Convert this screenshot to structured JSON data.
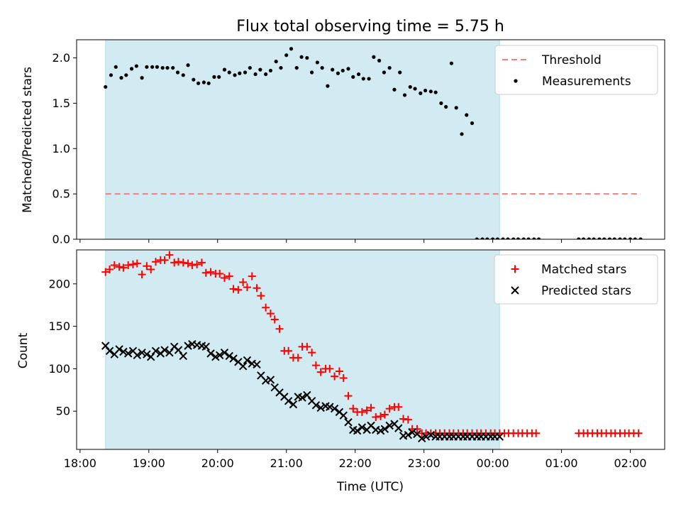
{
  "figure": {
    "title": "Flux total observing time = 5.75 h",
    "xlabel": "Time (UTC)",
    "xticks": [
      "18:00",
      "19:00",
      "20:00",
      "21:00",
      "22:00",
      "23:00",
      "00:00",
      "01:00",
      "02:00"
    ]
  },
  "colors": {
    "shade": "#add8e6",
    "threshold": "#f08080",
    "matched": "#ff0000",
    "predicted": "#000000",
    "measurement": "#000000"
  },
  "chart_data": [
    {
      "type": "scatter",
      "panel": "top",
      "ylabel": "Matched/Predicted stars",
      "xlim": [
        -0.05,
        8.5
      ],
      "ylim": [
        0,
        2.2
      ],
      "yticks": [
        0.0,
        0.5,
        1.0,
        1.5,
        2.0
      ],
      "shaded_span_x": [
        0.37,
        6.1
      ],
      "grid": false,
      "legend_position": "top-right",
      "series": [
        {
          "name": "Threshold",
          "style": "dashed-line",
          "x": [
            0.37,
            8.15
          ],
          "y": [
            0.5,
            0.5
          ]
        },
        {
          "name": "Measurements",
          "style": "dot",
          "x": [
            0.37,
            0.45,
            0.52,
            0.6,
            0.67,
            0.75,
            0.82,
            0.9,
            0.97,
            1.05,
            1.12,
            1.2,
            1.27,
            1.35,
            1.42,
            1.5,
            1.57,
            1.65,
            1.72,
            1.8,
            1.87,
            1.95,
            2.02,
            2.1,
            2.17,
            2.25,
            2.32,
            2.4,
            2.47,
            2.55,
            2.62,
            2.7,
            2.77,
            2.85,
            2.92,
            3.0,
            3.07,
            3.15,
            3.22,
            3.3,
            3.37,
            3.45,
            3.52,
            3.6,
            3.67,
            3.75,
            3.82,
            3.9,
            3.97,
            4.05,
            4.12,
            4.2,
            4.27,
            4.35,
            4.42,
            4.5,
            4.57,
            4.65,
            4.72,
            4.8,
            4.87,
            4.95,
            5.02,
            5.1,
            5.17,
            5.25,
            5.32,
            5.4,
            5.47,
            5.55,
            5.62,
            5.7,
            5.77,
            5.85,
            5.92,
            6.0,
            6.07,
            6.15,
            6.22,
            6.3,
            6.37,
            6.45,
            6.52,
            6.6,
            6.67,
            7.25,
            7.32,
            7.4,
            7.47,
            7.55,
            7.62,
            7.7,
            7.77,
            7.85,
            7.92,
            8.0,
            8.07,
            8.15
          ],
          "y": [
            1.68,
            1.81,
            1.9,
            1.78,
            1.81,
            1.88,
            1.91,
            1.78,
            1.9,
            1.9,
            1.9,
            1.89,
            1.89,
            1.89,
            1.84,
            1.81,
            1.92,
            1.76,
            1.72,
            1.73,
            1.72,
            1.79,
            1.79,
            1.87,
            1.84,
            1.81,
            1.83,
            1.84,
            1.89,
            1.82,
            1.87,
            1.82,
            1.86,
            1.96,
            1.89,
            2.03,
            2.1,
            1.89,
            2.01,
            2.0,
            1.84,
            1.95,
            1.89,
            1.69,
            1.87,
            1.83,
            1.86,
            1.88,
            1.79,
            1.82,
            1.77,
            1.77,
            2.01,
            1.97,
            1.84,
            1.89,
            1.65,
            1.84,
            1.59,
            1.68,
            1.66,
            1.61,
            1.64,
            1.63,
            1.62,
            1.5,
            1.46,
            1.94,
            1.45,
            1.16,
            1.37,
            1.28,
            0.0,
            0.0,
            0.0,
            0.0,
            0.0,
            0.0,
            0.0,
            0.0,
            0.0,
            0.0,
            0.0,
            0.0,
            0.0,
            0.0,
            0.0,
            0.0,
            0.0,
            0.0,
            0.0,
            0.0,
            0.0,
            0.0,
            0.0,
            0.0,
            0.0,
            0.0
          ]
        }
      ]
    },
    {
      "type": "scatter",
      "panel": "bottom",
      "ylabel": "Count",
      "xlim": [
        -0.05,
        8.5
      ],
      "ylim": [
        5,
        240
      ],
      "yticks": [
        50,
        100,
        150,
        200
      ],
      "shaded_span_x": [
        0.37,
        6.1
      ],
      "grid": false,
      "legend_position": "top-right",
      "series": [
        {
          "name": "Matched stars",
          "marker": "plus",
          "x": [
            0.37,
            0.43,
            0.5,
            0.57,
            0.63,
            0.7,
            0.77,
            0.83,
            0.9,
            0.97,
            1.03,
            1.1,
            1.17,
            1.23,
            1.3,
            1.37,
            1.43,
            1.5,
            1.57,
            1.63,
            1.7,
            1.77,
            1.83,
            1.9,
            1.97,
            2.03,
            2.1,
            2.17,
            2.23,
            2.3,
            2.37,
            2.43,
            2.5,
            2.57,
            2.63,
            2.7,
            2.77,
            2.83,
            2.9,
            2.97,
            3.03,
            3.1,
            3.17,
            3.23,
            3.3,
            3.37,
            3.43,
            3.5,
            3.57,
            3.63,
            3.7,
            3.77,
            3.83,
            3.9,
            3.97,
            4.03,
            4.1,
            4.17,
            4.23,
            4.3,
            4.37,
            4.43,
            4.5,
            4.57,
            4.63,
            4.7,
            4.77,
            4.83,
            4.9,
            4.97,
            5.03,
            5.1,
            5.17,
            5.23,
            5.3,
            5.37,
            5.43,
            5.5,
            5.57,
            5.63,
            5.7,
            5.77,
            5.83,
            5.9,
            5.97,
            6.03,
            6.1,
            6.17,
            6.23,
            6.3,
            6.37,
            6.43,
            6.5,
            6.57,
            6.63,
            7.25,
            7.32,
            7.38,
            7.45,
            7.52,
            7.58,
            7.65,
            7.72,
            7.78,
            7.85,
            7.92,
            7.98,
            8.05,
            8.12
          ],
          "y": [
            214,
            217,
            222,
            220,
            219,
            222,
            223,
            224,
            211,
            221,
            217,
            226,
            228,
            228,
            234,
            225,
            226,
            225,
            224,
            222,
            223,
            225,
            213,
            214,
            212,
            212,
            207,
            209,
            194,
            193,
            202,
            196,
            209,
            195,
            186,
            172,
            165,
            158,
            147,
            121,
            121,
            113,
            113,
            126,
            126,
            119,
            104,
            96,
            100,
            100,
            91,
            97,
            89,
            68,
            53,
            49,
            49,
            51,
            54,
            43,
            44,
            46,
            53,
            55,
            55,
            41,
            40,
            29,
            29,
            24,
            24,
            24,
            24,
            24,
            24,
            24,
            24,
            24,
            24,
            24,
            24,
            24,
            24,
            24,
            24,
            24,
            24,
            24,
            24,
            24,
            24,
            24,
            24,
            24,
            24,
            24,
            24,
            24,
            24,
            24,
            24,
            24,
            24,
            24,
            24,
            24,
            24,
            24,
            24
          ],
          "note": ""
        },
        {
          "name": "Predicted stars",
          "marker": "x",
          "x": [
            0.37,
            0.43,
            0.5,
            0.57,
            0.63,
            0.7,
            0.77,
            0.83,
            0.9,
            0.97,
            1.03,
            1.1,
            1.17,
            1.23,
            1.3,
            1.37,
            1.43,
            1.5,
            1.57,
            1.63,
            1.7,
            1.77,
            1.83,
            1.9,
            1.97,
            2.03,
            2.1,
            2.17,
            2.23,
            2.3,
            2.37,
            2.43,
            2.5,
            2.57,
            2.63,
            2.7,
            2.77,
            2.83,
            2.9,
            2.97,
            3.03,
            3.1,
            3.17,
            3.23,
            3.3,
            3.37,
            3.43,
            3.5,
            3.57,
            3.63,
            3.7,
            3.77,
            3.83,
            3.9,
            3.97,
            4.03,
            4.1,
            4.17,
            4.23,
            4.3,
            4.37,
            4.43,
            4.5,
            4.57,
            4.63,
            4.7,
            4.77,
            4.83,
            4.9,
            4.97,
            5.03,
            5.1,
            5.17,
            5.23,
            5.3,
            5.37,
            5.43,
            5.5,
            5.57,
            5.63,
            5.7,
            5.77,
            5.83,
            5.9,
            5.97,
            6.03,
            6.1
          ],
          "y": [
            127,
            121,
            117,
            123,
            120,
            118,
            121,
            116,
            119,
            117,
            114,
            121,
            118,
            122,
            119,
            126,
            122,
            115,
            127,
            129,
            128,
            127,
            126,
            118,
            114,
            116,
            119,
            115,
            112,
            108,
            103,
            110,
            106,
            105,
            92,
            86,
            87,
            78,
            72,
            67,
            62,
            58,
            67,
            66,
            69,
            62,
            57,
            54,
            56,
            55,
            53,
            49,
            45,
            37,
            28,
            27,
            31,
            28,
            33,
            28,
            27,
            29,
            33,
            35,
            30,
            21,
            22,
            25,
            23,
            18,
            20,
            22,
            20,
            20,
            20,
            20,
            20,
            20,
            20,
            20,
            20,
            20,
            20,
            20,
            20,
            20,
            20
          ]
        }
      ]
    }
  ]
}
